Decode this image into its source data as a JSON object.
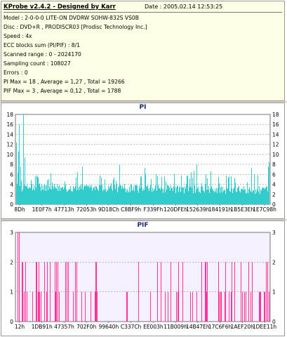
{
  "header": {
    "title": "KProbe v2.4.2 - Designed by Karr",
    "date": "Date : 2005.02.14 12:53:25"
  },
  "info_lines": [
    "Model : 2-0-0-0 LITE-ON DVDRW SOHW-832S  VS0B",
    "Disc : DVD+R , PRODISCR03 [Prodisc Technology Inc.]",
    "Speed : 4x",
    "ECC blocks sum (PI/PIF) : 8/1",
    "Scanned range : 0 - 2024170",
    "Sampling count : 108027",
    "Errors : 0",
    "PI Max = 18 , Average = 1,27 , Total = 19266",
    "PIF Max = 3 , Average = 0,12 , Total = 1788"
  ],
  "colors": {
    "pi": "#33cccc",
    "pif": "#ff3399",
    "plot_bg_pi": "#ffffff",
    "plot_bg_pif": "#f4f0ff",
    "title": "#1a2a7a",
    "grid": "#999999"
  },
  "chart_data": [
    {
      "type": "bar",
      "title": "PI",
      "ylim": [
        0,
        18
      ],
      "yticks": [
        0,
        2,
        4,
        6,
        8,
        10,
        12,
        14,
        16,
        18
      ],
      "xticks": [
        "8Dh",
        "1E0F7h",
        "47713h",
        "72053h",
        "9D18Ch",
        "C8BF9h",
        "F339Fh",
        "120DFEh",
        "152639h",
        "184191h",
        "1B5E3Eh",
        "1E7C98h"
      ],
      "grid": "dashed horizontal",
      "max": 18,
      "average": 1.27,
      "total": 19266
    },
    {
      "type": "bar",
      "title": "PIF",
      "ylim": [
        0,
        3
      ],
      "yticks": [
        0,
        1,
        2,
        3
      ],
      "xticks": [
        "12h",
        "1DB91h",
        "47357h",
        "702F0h",
        "99640h",
        "C337Ch",
        "EE003h",
        "11B009h",
        "14B47Eh",
        "17C6F6h",
        "1AEF20h",
        "1DEE11h"
      ],
      "grid": "dashed horizontal",
      "max": 3,
      "average": 0.12,
      "total": 1788
    }
  ]
}
